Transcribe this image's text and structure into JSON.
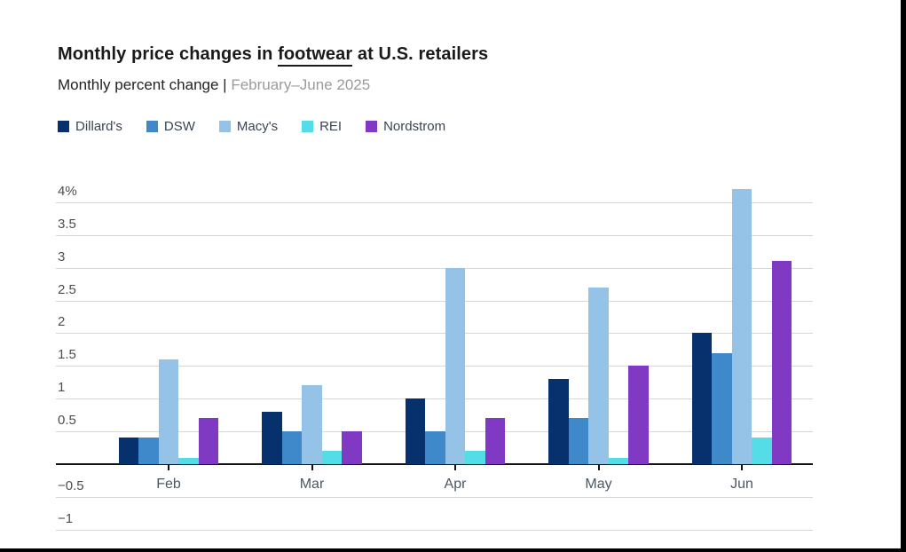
{
  "header": {
    "title_pre": "Monthly price changes in ",
    "title_underlined": "footwear",
    "title_post": " at U.S. retailers",
    "subtitle_dark": "Monthly percent change | ",
    "subtitle_muted": "February–June 2025"
  },
  "colors": {
    "background": "#ffffff",
    "letterbox": "#000000",
    "gridline": "#d7d7d7",
    "axis": "#141414",
    "title_text": "#1a1a1a",
    "subtitle_muted_text": "#9b9b9b"
  },
  "chart_data": {
    "type": "bar",
    "title": "Monthly price changes in footwear at U.S. retailers",
    "subtitle": "Monthly percent change | February–June 2025",
    "xlabel": "",
    "ylabel": "Monthly percent change",
    "ylim": [
      -1,
      4.25
    ],
    "grid": "horizontal",
    "legend_position": "top",
    "categories": [
      "Feb",
      "Mar",
      "Apr",
      "May",
      "Jun"
    ],
    "series": [
      {
        "name": "Dillard's",
        "color": "#06316c",
        "values": [
          0.4,
          0.8,
          1.0,
          1.3,
          2.0
        ]
      },
      {
        "name": "DSW",
        "color": "#3f88c9",
        "values": [
          0.4,
          0.5,
          0.5,
          0.7,
          1.7
        ]
      },
      {
        "name": "Macy's",
        "color": "#94c3e7",
        "values": [
          1.6,
          1.2,
          3.0,
          2.7,
          4.2
        ]
      },
      {
        "name": "REI",
        "color": "#55dde7",
        "values": [
          0.1,
          0.2,
          0.2,
          0.1,
          0.4
        ]
      },
      {
        "name": "Nordstrom",
        "color": "#8039c2",
        "values": [
          0.7,
          0.5,
          0.7,
          1.5,
          3.1
        ]
      }
    ],
    "y_ticks": [
      {
        "value": 4,
        "label": "4%"
      },
      {
        "value": 3.5,
        "label": "3.5"
      },
      {
        "value": 3,
        "label": "3"
      },
      {
        "value": 2.5,
        "label": "2.5"
      },
      {
        "value": 2,
        "label": "2"
      },
      {
        "value": 1.5,
        "label": "1.5"
      },
      {
        "value": 1,
        "label": "1"
      },
      {
        "value": 0.5,
        "label": "0.5"
      },
      {
        "value": 0,
        "label": ""
      },
      {
        "value": -0.5,
        "label": "−0.5"
      },
      {
        "value": -1,
        "label": "−1"
      }
    ]
  }
}
